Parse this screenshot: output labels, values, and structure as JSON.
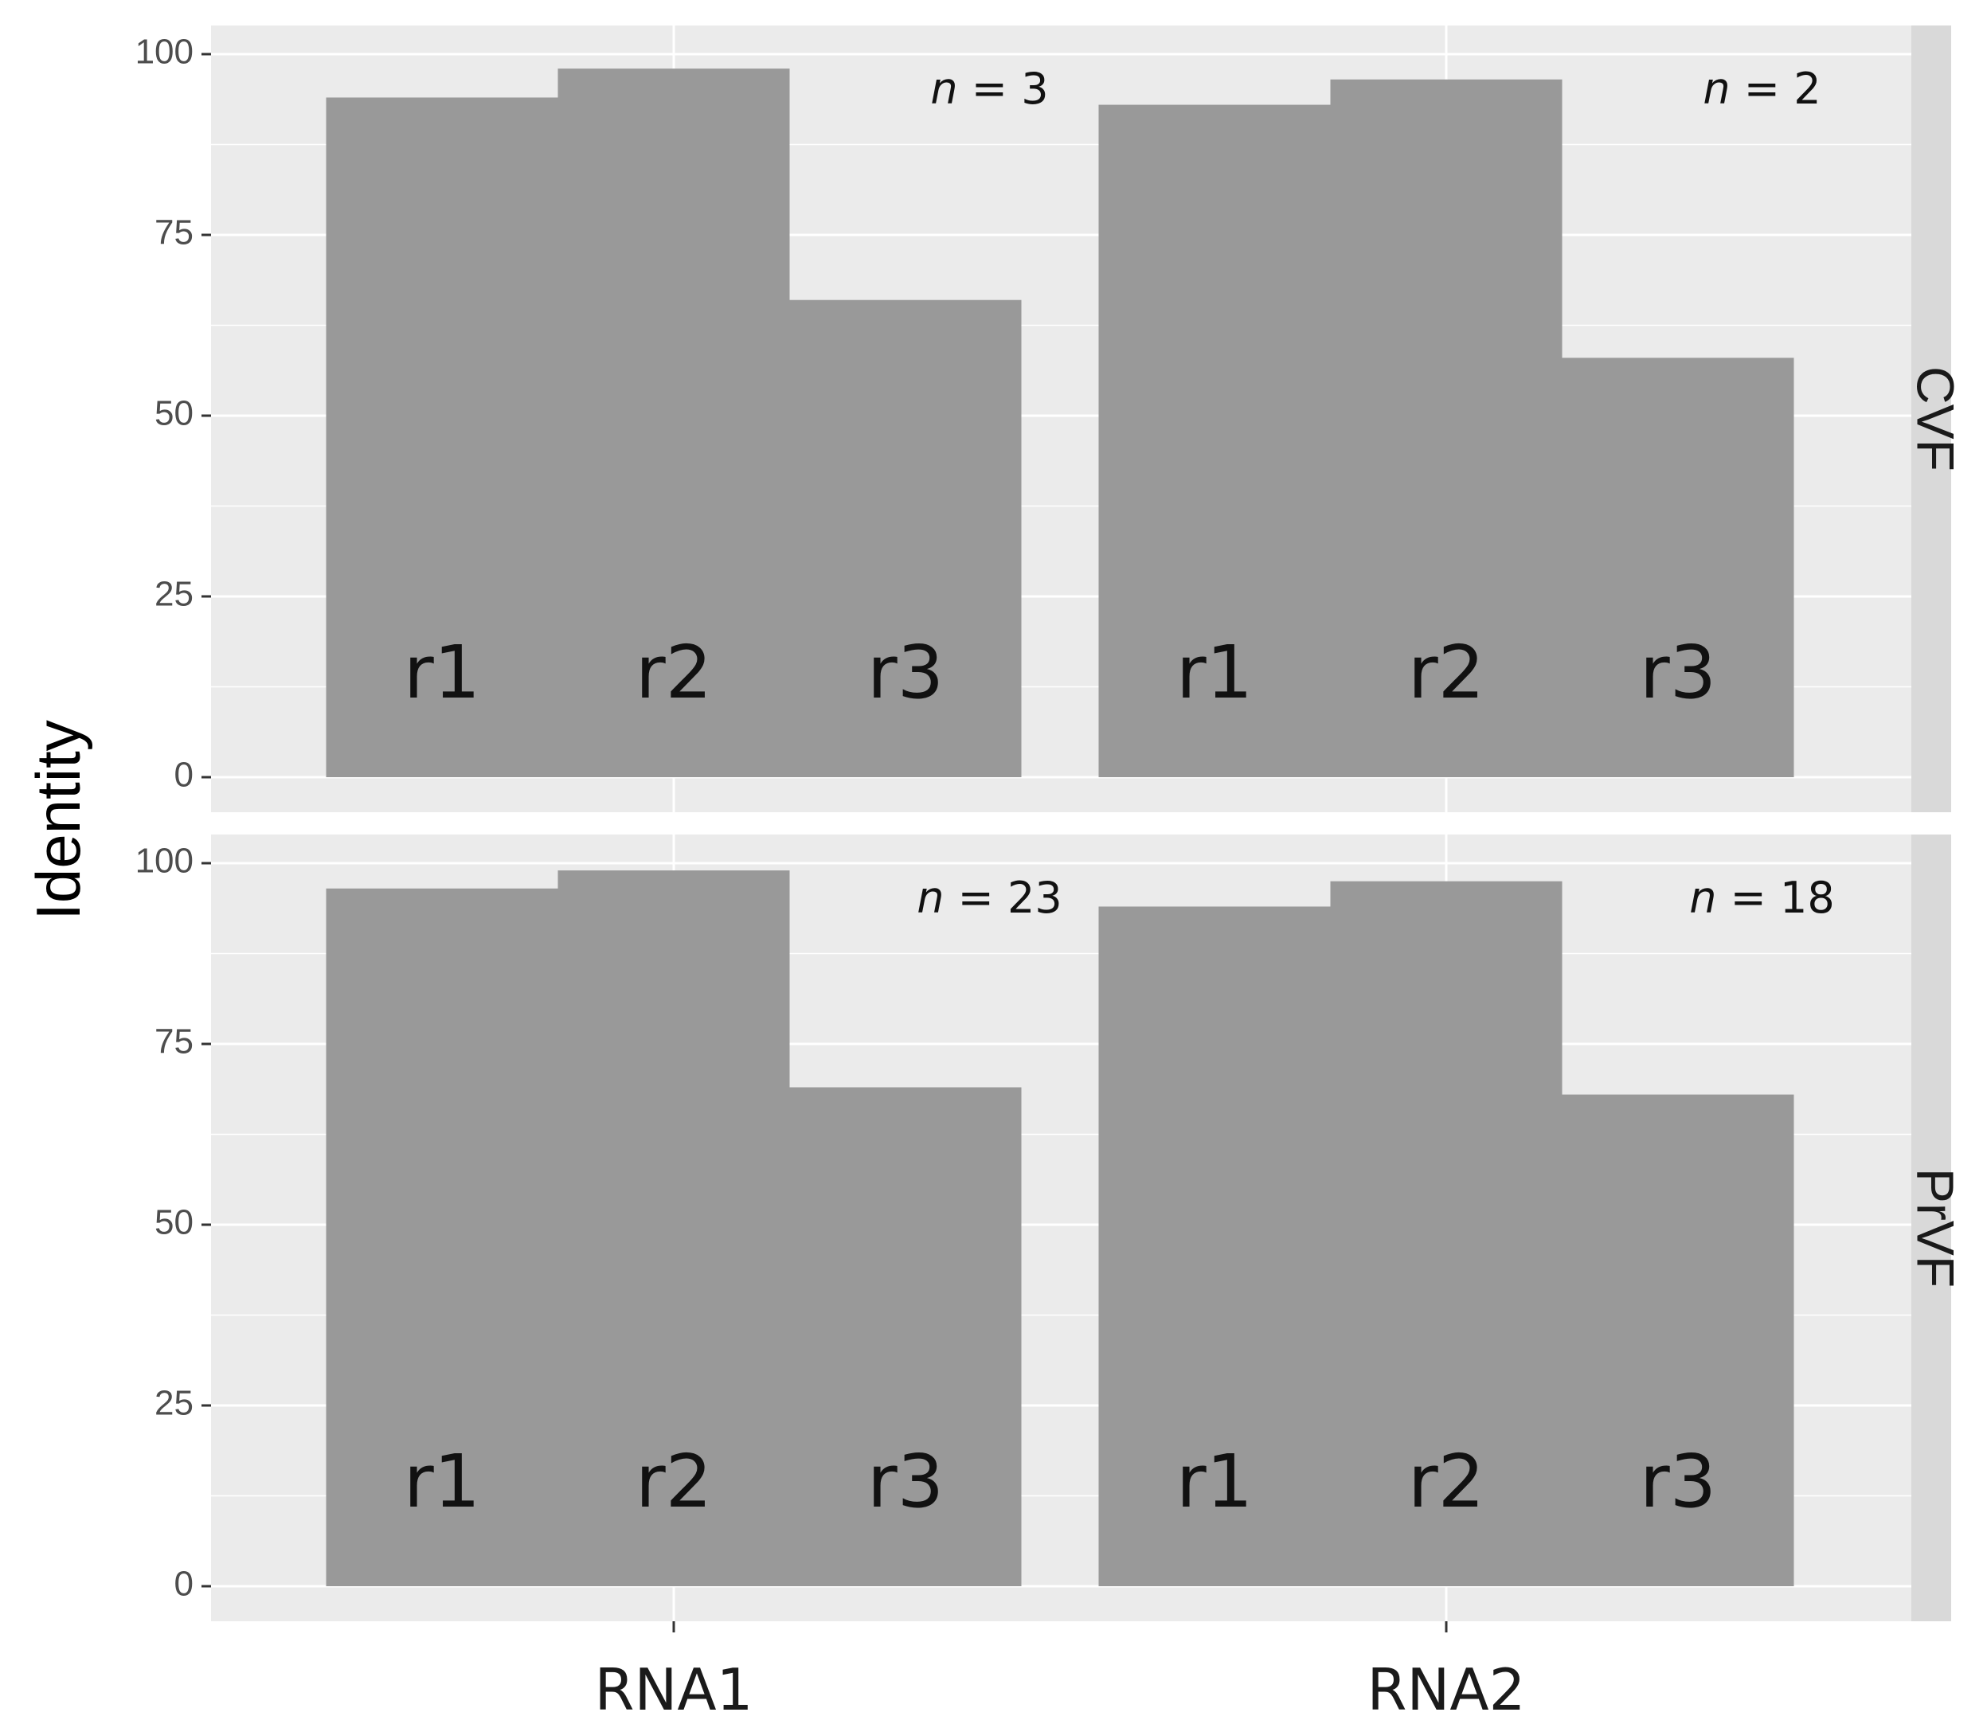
{
  "chart_data": {
    "type": "bar",
    "facet": "rows",
    "ylabel": "Identity",
    "xlabel": "",
    "ylim": [
      0,
      100
    ],
    "yticks": [
      0,
      25,
      50,
      75,
      100
    ],
    "categories": [
      "RNA1",
      "RNA2"
    ],
    "bar_fill": "#999999",
    "panel_background": "#ebebeb",
    "strip_background": "#d9d9d9",
    "panels": [
      {
        "strip": "CVF",
        "groups": [
          {
            "category": "RNA1",
            "n_label": "n = 3",
            "bars": [
              {
                "label": "r1",
                "value": 94
              },
              {
                "label": "r2",
                "value": 98
              },
              {
                "label": "r3",
                "value": 66
              }
            ]
          },
          {
            "category": "RNA2",
            "n_label": "n = 2",
            "bars": [
              {
                "label": "r1",
                "value": 93
              },
              {
                "label": "r2",
                "value": 96.5
              },
              {
                "label": "r3",
                "value": 58
              }
            ]
          }
        ]
      },
      {
        "strip": "PrVF",
        "groups": [
          {
            "category": "RNA1",
            "n_label": "n = 23",
            "bars": [
              {
                "label": "r1",
                "value": 96.5
              },
              {
                "label": "r2",
                "value": 99
              },
              {
                "label": "r3",
                "value": 69
              }
            ]
          },
          {
            "category": "RNA2",
            "n_label": "n = 18",
            "bars": [
              {
                "label": "r1",
                "value": 94
              },
              {
                "label": "r2",
                "value": 97.5
              },
              {
                "label": "r3",
                "value": 68
              }
            ]
          }
        ]
      }
    ]
  }
}
